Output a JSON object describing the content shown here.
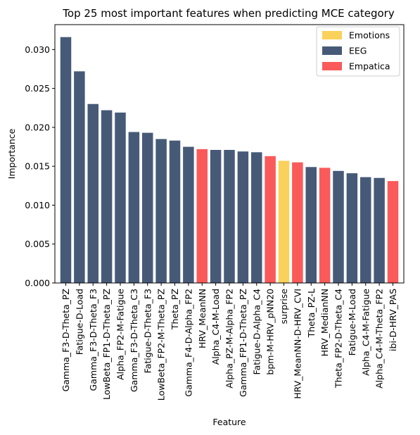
{
  "chart_data": {
    "type": "bar",
    "title": "Top 25 most important features when predicting MCE category",
    "xlabel": "Feature",
    "ylabel": "Importance",
    "ylim": [
      0,
      0.0332
    ],
    "yticks": [
      "0.000",
      "0.005",
      "0.010",
      "0.015",
      "0.020",
      "0.025",
      "0.030"
    ],
    "ytick_values": [
      0,
      0.005,
      0.01,
      0.015,
      0.02,
      0.025,
      0.03
    ],
    "grid": false,
    "legend_position": "top-right",
    "legend": [
      {
        "name": "Emotions",
        "color": "#fad15a"
      },
      {
        "name": "EEG",
        "color": "#465a78"
      },
      {
        "name": "Empatica",
        "color": "#fa5a5a"
      }
    ],
    "categories": [
      "Gamma_F3-D-Theta_PZ",
      "Fatigue-D-Load",
      "Gamma_F3-D-Theta_F3",
      "LowBeta_FP1-D-Theta_PZ",
      "Alpha_FP2-M-Fatigue",
      "Gamma_F3-D-Theta_C3",
      "Fatigue-D-Theta_F3",
      "LowBeta_FP2-M-Theta_PZ",
      "Theta_PZ",
      "Gamma_F4-D-Alpha_FP2",
      "HRV_MeanNN",
      "Alpha_C4-M-Load",
      "Alpha_PZ-M-Alpha_FP2",
      "Gamma_FP1-D-Theta_PZ",
      "Fatigue-D-Alpha_C4",
      "bpm-M-HRV_pNN20",
      "surprise",
      "HRV_MeanNN-D-HRV_CVI",
      "Theta_PZ-L",
      "HRV_MedianNN",
      "Theta_FP2-D-Theta_C4",
      "Fatigue-M-Load",
      "Alpha_C4-M-Fatigue",
      "Alpha_C4-M-Theta_FP2",
      "ibi-D-HRV_PAS"
    ],
    "values": [
      0.0316,
      0.0272,
      0.023,
      0.0222,
      0.0219,
      0.0194,
      0.0193,
      0.0185,
      0.0183,
      0.0175,
      0.0172,
      0.0171,
      0.0171,
      0.0169,
      0.0168,
      0.0163,
      0.0157,
      0.0155,
      0.0149,
      0.0148,
      0.0144,
      0.0141,
      0.0136,
      0.0135,
      0.0131
    ],
    "groups": [
      "EEG",
      "EEG",
      "EEG",
      "EEG",
      "EEG",
      "EEG",
      "EEG",
      "EEG",
      "EEG",
      "EEG",
      "Empatica",
      "EEG",
      "EEG",
      "EEG",
      "EEG",
      "Empatica",
      "Emotions",
      "Empatica",
      "EEG",
      "Empatica",
      "EEG",
      "EEG",
      "EEG",
      "EEG",
      "Empatica"
    ]
  }
}
